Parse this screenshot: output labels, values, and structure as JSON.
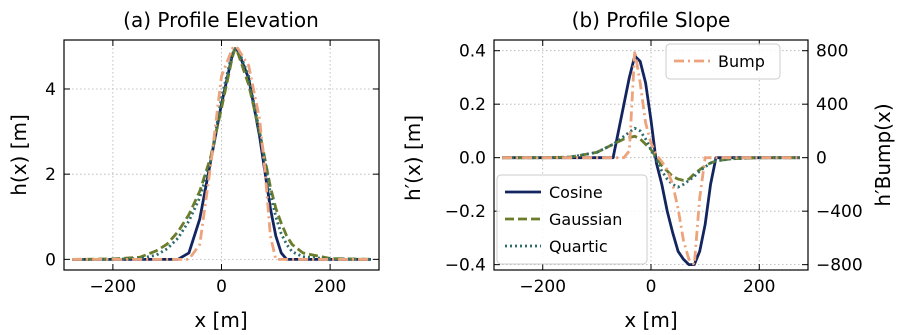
{
  "colors": {
    "cosine": "#13255f",
    "gaussian": "#6b7d2b",
    "quartic": "#2e6b6b",
    "bump": "#eda37c"
  },
  "chart_data": [
    {
      "type": "line",
      "title": "(a) Profile Elevation",
      "xlabel": "x [m]",
      "ylabel": "h(x) [m]",
      "xlim": [
        -290,
        290
      ],
      "ylim": [
        -0.25,
        5.15
      ],
      "xticks": [
        -200,
        0,
        200
      ],
      "xtick_labels": [
        "−200",
        "0",
        "200"
      ],
      "yticks": [
        0,
        2,
        4
      ],
      "ytick_labels": [
        "0",
        "2",
        "4"
      ],
      "grid": true,
      "x": [
        -275,
        -200,
        -150,
        -120,
        -100,
        -80,
        -60,
        -40,
        -20,
        0,
        20,
        25,
        30,
        50,
        70,
        80,
        90,
        100,
        110,
        120,
        130,
        150,
        200,
        275
      ],
      "series": [
        {
          "name": "Cosine",
          "style": "solid",
          "values": [
            0,
            0,
            0,
            0,
            0,
            0,
            0.15,
            0.95,
            2.3,
            3.65,
            4.8,
            4.95,
            4.9,
            4.25,
            2.9,
            2.05,
            1.2,
            0.55,
            0.15,
            0,
            0,
            0,
            0,
            0
          ]
        },
        {
          "name": "Gaussian",
          "style": "dashed",
          "values": [
            0,
            0.01,
            0.05,
            0.2,
            0.36,
            0.65,
            1.05,
            1.6,
            2.4,
            3.55,
            4.75,
            4.95,
            4.85,
            4.1,
            3.0,
            2.35,
            1.7,
            1.2,
            0.85,
            0.55,
            0.35,
            0.15,
            0.02,
            0
          ]
        },
        {
          "name": "Quartic",
          "style": "dotted",
          "values": [
            0,
            0,
            0.02,
            0.1,
            0.25,
            0.5,
            0.9,
            1.45,
            2.3,
            3.8,
            4.85,
            4.98,
            4.95,
            4.3,
            3.0,
            2.3,
            1.55,
            1.0,
            0.6,
            0.35,
            0.18,
            0.06,
            0.01,
            0
          ]
        },
        {
          "name": "Bump",
          "style": "dashdot",
          "values": [
            0,
            0,
            0,
            0,
            0,
            0,
            0,
            0.35,
            2.2,
            4.3,
            4.95,
            5.0,
            4.95,
            4.55,
            3.3,
            2.1,
            0.55,
            0,
            0,
            0,
            0,
            0,
            0,
            0
          ]
        }
      ]
    },
    {
      "type": "line",
      "title": "(b) Profile Slope",
      "xlabel": "x [m]",
      "ylabel": "h′(x) [m]",
      "y2label": "h′Bump(x)",
      "xlim": [
        -290,
        290
      ],
      "ylim": [
        -0.42,
        0.44
      ],
      "y2lim": [
        -840,
        880
      ],
      "xticks": [
        -200,
        0,
        200
      ],
      "xtick_labels": [
        "−200",
        "0",
        "200"
      ],
      "yticks": [
        -0.4,
        -0.2,
        0,
        0.2,
        0.4
      ],
      "ytick_labels": [
        "−0.4",
        "−0.2",
        "0.0",
        "0.2",
        "0.4"
      ],
      "y2ticks": [
        -800,
        -400,
        0,
        400,
        800
      ],
      "y2tick_labels": [
        "−800",
        "−400",
        "0",
        "400",
        "800"
      ],
      "grid": true,
      "legend_left": {
        "placement": "bottom-left",
        "entries": [
          "Cosine",
          "Gaussian",
          "Quartic"
        ]
      },
      "legend_right": {
        "placement": "top-right",
        "entries": [
          "Bump"
        ]
      },
      "x": [
        -275,
        -200,
        -150,
        -100,
        -80,
        -70,
        -60,
        -50,
        -40,
        -30,
        -20,
        -10,
        0,
        10,
        20,
        30,
        40,
        50,
        60,
        70,
        80,
        90,
        100,
        110,
        120,
        150,
        200,
        275
      ],
      "series": [
        {
          "name": "Cosine",
          "style": "solid",
          "axis": "left",
          "values": [
            0,
            0,
            0,
            0,
            0,
            0,
            0.1,
            0.2,
            0.3,
            0.38,
            0.36,
            0.28,
            0.14,
            -0.02,
            -0.1,
            -0.2,
            -0.28,
            -0.35,
            -0.38,
            -0.4,
            -0.4,
            -0.35,
            -0.25,
            -0.1,
            0,
            0,
            0,
            0
          ]
        },
        {
          "name": "Gaussian",
          "style": "dashed",
          "axis": "left",
          "values": [
            0,
            0,
            0.002,
            0.02,
            0.04,
            0.05,
            0.06,
            0.07,
            0.075,
            0.08,
            0.07,
            0.05,
            0.03,
            0.0,
            -0.03,
            -0.05,
            -0.07,
            -0.08,
            -0.085,
            -0.08,
            -0.06,
            -0.045,
            -0.03,
            -0.02,
            -0.012,
            -0.004,
            0,
            0
          ]
        },
        {
          "name": "Quartic",
          "style": "dotted",
          "axis": "left",
          "values": [
            0,
            0,
            0.002,
            0.02,
            0.04,
            0.05,
            0.065,
            0.08,
            0.095,
            0.11,
            0.1,
            0.07,
            0.03,
            -0.01,
            -0.05,
            -0.08,
            -0.1,
            -0.11,
            -0.1,
            -0.085,
            -0.07,
            -0.05,
            -0.035,
            -0.02,
            -0.012,
            -0.004,
            0,
            0
          ]
        },
        {
          "name": "Bump",
          "style": "dashdot",
          "axis": "right",
          "values": [
            0,
            0,
            0,
            0,
            0,
            0,
            0,
            0,
            50,
            800,
            560,
            260,
            110,
            20,
            -30,
            -90,
            -200,
            -380,
            -620,
            -760,
            -800,
            -300,
            0,
            0,
            0,
            0,
            0,
            0
          ]
        }
      ]
    }
  ]
}
